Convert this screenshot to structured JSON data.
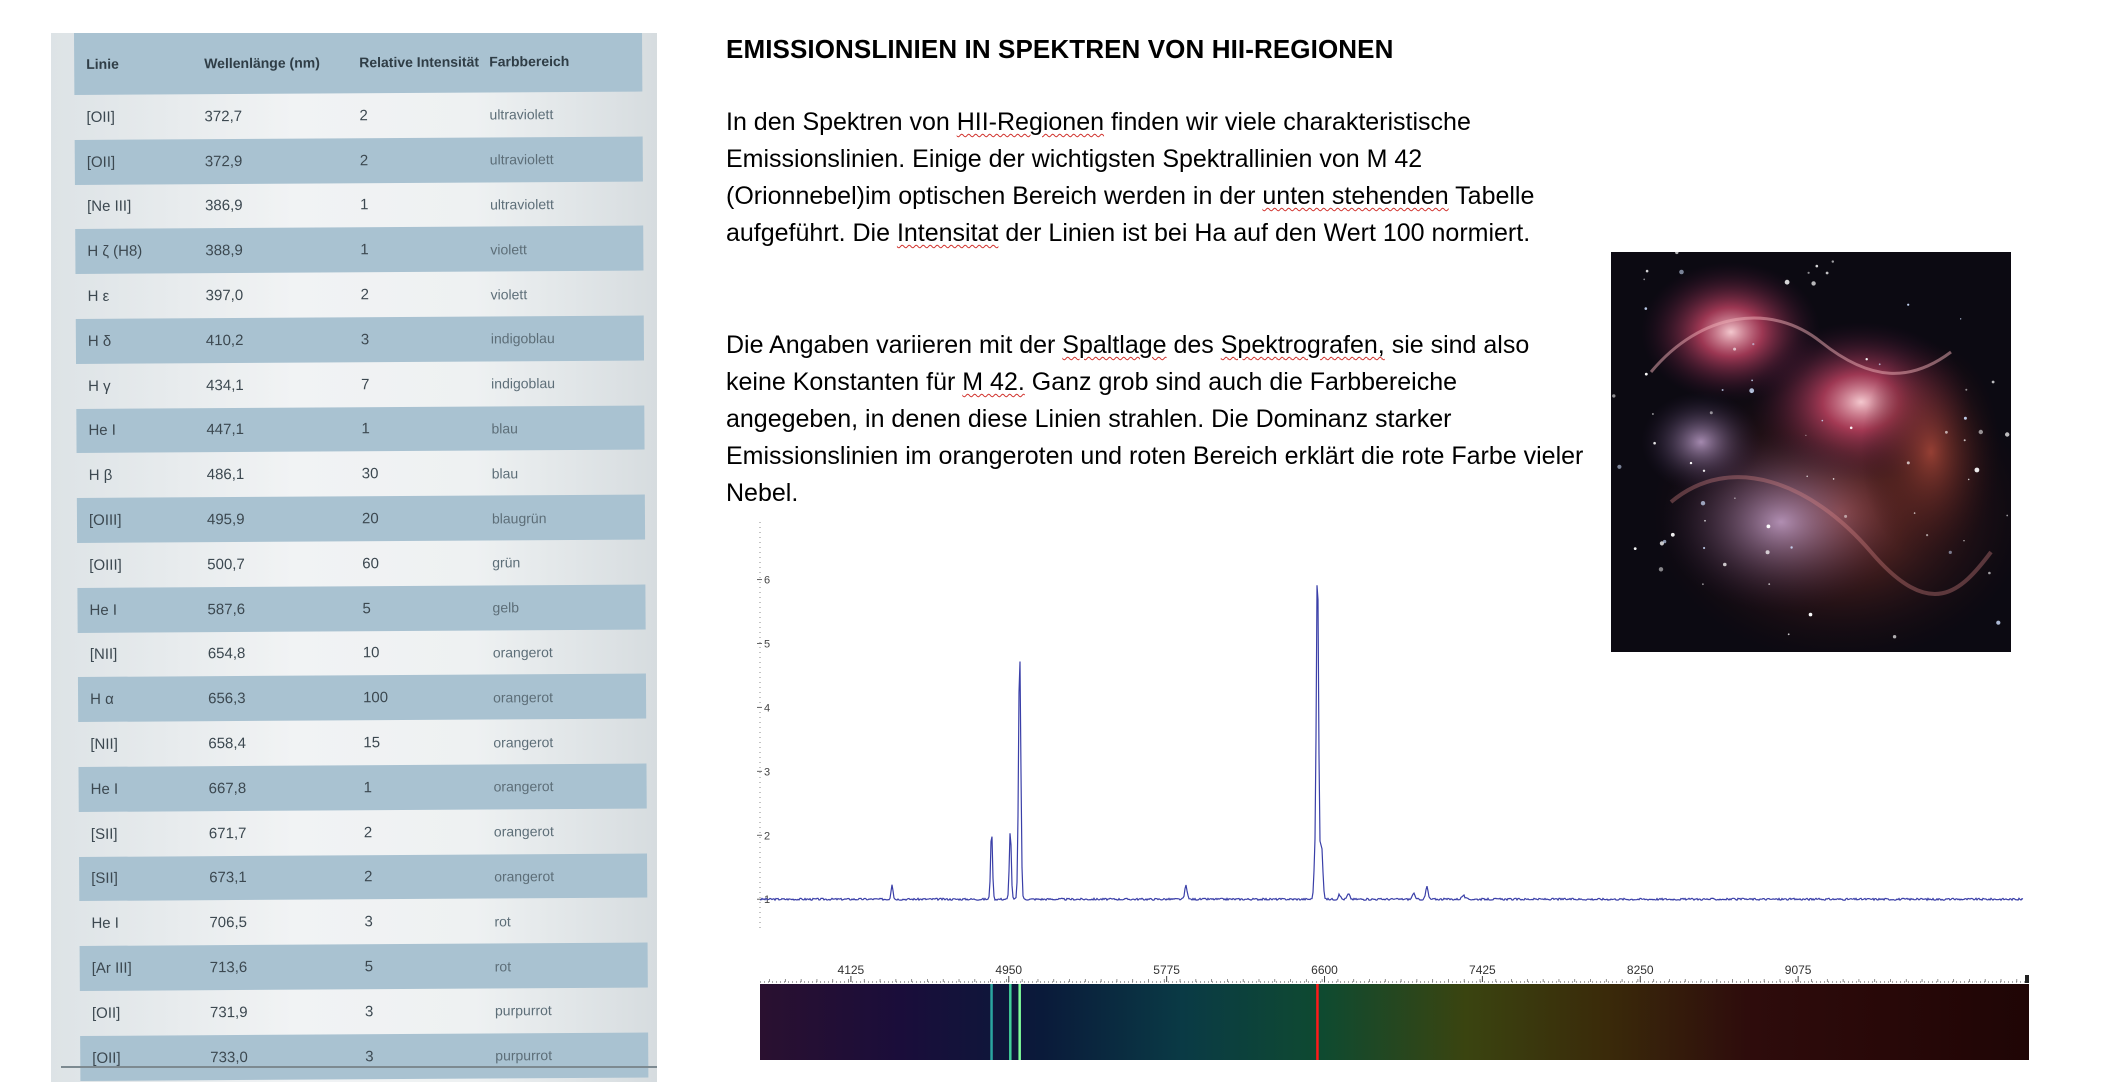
{
  "table": {
    "headers": [
      "Linie",
      "Wellenlänge (nm)",
      "Relative Intensität",
      "Farbbereich"
    ],
    "rows": [
      [
        "[OII]",
        "372,7",
        "2",
        "ultraviolett"
      ],
      [
        "[OII]",
        "372,9",
        "2",
        "ultraviolett"
      ],
      [
        "[Ne III]",
        "386,9",
        "1",
        "ultraviolett"
      ],
      [
        "H ζ (H8)",
        "388,9",
        "1",
        "violett"
      ],
      [
        "H ε",
        "397,0",
        "2",
        "violett"
      ],
      [
        "H δ",
        "410,2",
        "3",
        "indigoblau"
      ],
      [
        "H γ",
        "434,1",
        "7",
        "indigoblau"
      ],
      [
        "He I",
        "447,1",
        "1",
        "blau"
      ],
      [
        "H β",
        "486,1",
        "30",
        "blau"
      ],
      [
        "[OIII]",
        "495,9",
        "20",
        "blaugrün"
      ],
      [
        "[OIII]",
        "500,7",
        "60",
        "grün"
      ],
      [
        "He I",
        "587,6",
        "5",
        "gelb"
      ],
      [
        "[NII]",
        "654,8",
        "10",
        "orangerot"
      ],
      [
        "H α",
        "656,3",
        "100",
        "orangerot"
      ],
      [
        "[NII]",
        "658,4",
        "15",
        "orangerot"
      ],
      [
        "He I",
        "667,8",
        "1",
        "orangerot"
      ],
      [
        "[SII]",
        "671,7",
        "2",
        "orangerot"
      ],
      [
        "[SII]",
        "673,1",
        "2",
        "orangerot"
      ],
      [
        "He I",
        "706,5",
        "3",
        "rot"
      ],
      [
        "[Ar III]",
        "713,6",
        "5",
        "rot"
      ],
      [
        "[OII]",
        "731,9",
        "3",
        "purpurrot"
      ],
      [
        "[OII]",
        "733,0",
        "3",
        "purpurrot"
      ]
    ]
  },
  "text": {
    "title": "EMISSIONSLINIEN IN SPEKTREN VON HII-REGIONEN",
    "p1": [
      {
        "t": "In den Spektren von "
      },
      {
        "t": "HII-Regionen",
        "s": true
      },
      {
        "t": " finden wir viele charakteristische Emissionslinien. Einige der wichtigsten Spektrallinien von M 42 (Orionnebel)im optischen Bereich werden in der "
      },
      {
        "t": "unten stehenden",
        "s": true
      },
      {
        "t": " Tabelle  aufgeführt. Die "
      },
      {
        "t": "Intensitat",
        "s": true
      },
      {
        "t": " der Linien ist bei Ha auf den Wert 100 normiert."
      }
    ],
    "p2": [
      {
        "t": "Die Angaben variieren mit der "
      },
      {
        "t": "Spaltlage",
        "s": true
      },
      {
        "t": " des "
      },
      {
        "t": "Spektrografen,",
        "s": true
      },
      {
        "t": " sie sind also keine Konstanten für "
      },
      {
        "t": "M 42.",
        "s": true
      },
      {
        "t": " Ganz grob sind auch die Farbbereiche angegeben, in denen diese Linien strahlen. Die Dominanz starker Emissionslinien im orangeroten und roten Bereich erklärt die rote Farbe vieler Nebel."
      }
    ]
  },
  "chart_data": {
    "type": "line",
    "x_ticks": [
      4125,
      4950,
      5775,
      6600,
      7425,
      8250,
      9075
    ],
    "y_ticks": [
      1,
      2,
      3,
      4,
      5,
      6
    ],
    "xlim": [
      3650,
      10250
    ],
    "ylim": [
      0.55,
      6.9
    ],
    "baseline": 1.0,
    "peaks": [
      {
        "x": 4340,
        "y": 1.24,
        "w": 5
      },
      {
        "x": 4860,
        "y": 2.08,
        "w": 5
      },
      {
        "x": 4958,
        "y": 2.1,
        "w": 5
      },
      {
        "x": 5007,
        "y": 4.85,
        "w": 6
      },
      {
        "x": 5876,
        "y": 1.22,
        "w": 6
      },
      {
        "x": 6548,
        "y": 1.45,
        "w": 5
      },
      {
        "x": 6563,
        "y": 6.25,
        "w": 6
      },
      {
        "x": 6584,
        "y": 1.85,
        "w": 7
      },
      {
        "x": 6678,
        "y": 1.07,
        "w": 6
      },
      {
        "x": 6725,
        "y": 1.08,
        "w": 7
      },
      {
        "x": 7065,
        "y": 1.1,
        "w": 6
      },
      {
        "x": 7135,
        "y": 1.2,
        "w": 6
      },
      {
        "x": 7325,
        "y": 1.06,
        "w": 8
      }
    ],
    "strip_colors": [
      "#2a1030",
      "#1a0d3a",
      "#0a1a3a",
      "#0a3a45",
      "#0f4a30",
      "#3a4410",
      "#3a2a0a",
      "#2e0c0c",
      "#280808",
      "#1f0505"
    ],
    "strip_lines": [
      {
        "x": 4860,
        "color": "#2aa6a0"
      },
      {
        "x": 4958,
        "color": "#3fcf9a"
      },
      {
        "x": 5007,
        "color": "#7fff9a"
      },
      {
        "x": 6563,
        "color": "#ff1a1a"
      }
    ],
    "line_color": "#3a3fa8"
  }
}
